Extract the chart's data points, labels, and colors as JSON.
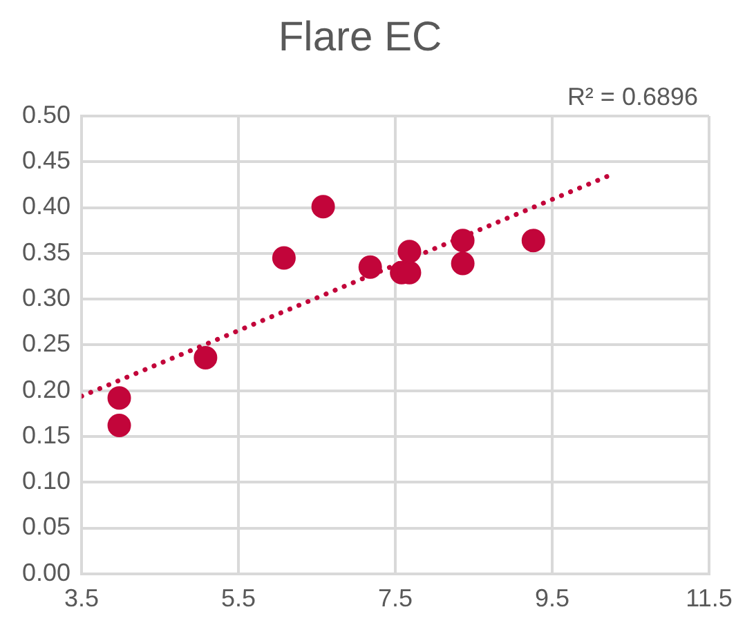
{
  "chart_data": {
    "type": "scatter",
    "title": "Flare EC",
    "series": [
      {
        "type": "scatter",
        "color": "#c2053a",
        "marker": "circle",
        "x": [
          3.98,
          3.98,
          5.08,
          6.08,
          6.58,
          7.18,
          7.58,
          7.68,
          7.68,
          8.36,
          8.36,
          9.26
        ],
        "values": [
          0.192,
          0.162,
          0.236,
          0.345,
          0.401,
          0.335,
          0.329,
          0.329,
          0.352,
          0.364,
          0.339,
          0.364
        ]
      },
      {
        "type": "line",
        "color": "#c2053a",
        "marker": "none",
        "line_style": "dotted",
        "x": [
          3.5,
          10.2
        ],
        "values": [
          0.194,
          0.434
        ]
      }
    ],
    "annotations": [
      "R² = 0.6896"
    ],
    "xlim": [
      3.5,
      11.5
    ],
    "xticks": [
      3.5,
      5.5,
      7.5,
      9.5,
      11.5
    ],
    "ylim": [
      0,
      0.5
    ],
    "yticks": [
      {
        "value": 0,
        "label": "0.00"
      },
      0.05,
      {
        "value": 0.1,
        "label": "0.10"
      },
      0.15,
      {
        "value": 0.2,
        "label": "0.20"
      },
      0.25,
      {
        "value": 0.3,
        "label": "0.30"
      },
      0.35,
      {
        "value": 0.4,
        "label": "0.40"
      },
      0.45,
      {
        "value": 0.5,
        "label": "0.50"
      }
    ],
    "grid": true,
    "legend": false
  }
}
